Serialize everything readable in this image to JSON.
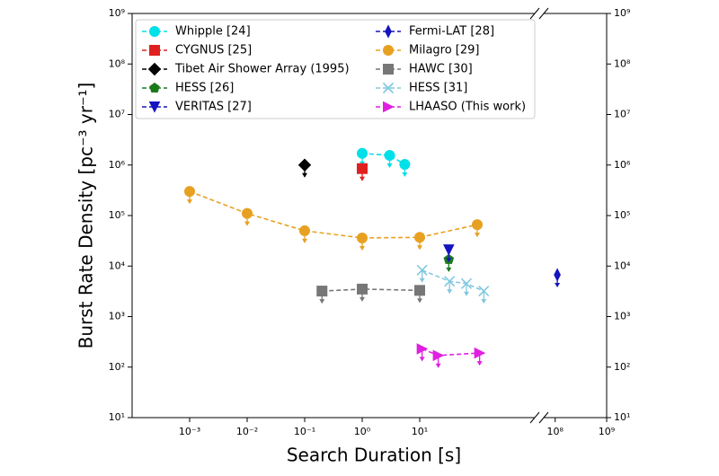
{
  "chart_data": {
    "type": "scatter",
    "xlog": true,
    "ylog": true,
    "upper_limits": true,
    "line_style": "dashed",
    "legend": "upper left",
    "xlabel": "Search Duration [s]",
    "ylabel": "Burst Rate Density [pc⁻³ yr⁻¹]",
    "xlim": [
      0.0001,
      1000
    ],
    "x2lim": [
      60000000,
      1000000000
    ],
    "ylim": [
      10,
      1000000000
    ],
    "xticks": [
      {
        "value": 0.001,
        "label": "10⁻³"
      },
      {
        "value": 0.01,
        "label": "10⁻²"
      },
      {
        "value": 0.1,
        "label": "10⁻¹"
      },
      {
        "value": 1,
        "label": "10⁰"
      },
      {
        "value": 10,
        "label": "10¹"
      }
    ],
    "x2ticks": [
      {
        "value": 100000000,
        "label": "10⁸"
      },
      {
        "value": 1000000000,
        "label": "10⁹"
      }
    ],
    "yticks": [
      {
        "value": 10,
        "label": "10¹"
      },
      {
        "value": 100,
        "label": "10²"
      },
      {
        "value": 1000,
        "label": "10³"
      },
      {
        "value": 10000,
        "label": "10⁴"
      },
      {
        "value": 100000,
        "label": "10⁵"
      },
      {
        "value": 1000000,
        "label": "10⁶"
      },
      {
        "value": 10000000,
        "label": "10⁷"
      },
      {
        "value": 100000000,
        "label": "10⁸"
      },
      {
        "value": 1000000000,
        "label": "10⁹"
      }
    ],
    "series": [
      {
        "name": "Whipple [24]",
        "color": "#00e0e8",
        "marker": "circle",
        "x": [
          1,
          3,
          5.5
        ],
        "values": [
          1700000,
          1550000,
          1030000
        ]
      },
      {
        "name": "CYGNUS [25]",
        "color": "#e02020",
        "marker": "square",
        "x": [
          1
        ],
        "values": [
          850000
        ]
      },
      {
        "name": "Tibet Air Shower Array (1995)",
        "color": "#000000",
        "marker": "diamond",
        "x": [
          0.1
        ],
        "values": [
          1000000
        ]
      },
      {
        "name": "HESS [26]",
        "color": "#1a7a1a",
        "marker": "pentagon",
        "x": [
          32
        ],
        "values": [
          13500
        ]
      },
      {
        "name": "VERITAS [27]",
        "color": "#1515c0",
        "marker": "triangle-down",
        "x": [
          32
        ],
        "values": [
          21000
        ]
      },
      {
        "name": "Fermi-LAT [28]",
        "color": "#1515c0",
        "marker": "thin-diamond",
        "x": [
          110000000
        ],
        "values": [
          6700
        ]
      },
      {
        "name": "Milagro [29]",
        "color": "#e8a020",
        "marker": "circle",
        "x": [
          0.001,
          0.01,
          0.1,
          1,
          10,
          100
        ],
        "values": [
          300000,
          110000,
          50000,
          36000,
          37000,
          66000
        ]
      },
      {
        "name": "HAWC [30]",
        "color": "#777777",
        "marker": "square",
        "x": [
          0.2,
          1,
          10
        ],
        "values": [
          3200,
          3500,
          3300
        ]
      },
      {
        "name": "HESS [31]",
        "color": "#80c8e0",
        "marker": "x",
        "x": [
          11,
          33,
          65,
          130
        ],
        "values": [
          8300,
          5000,
          4500,
          3200
        ]
      },
      {
        "name": "LHAASO (This work)",
        "color": "#e020e0",
        "marker": "triangle-right",
        "x": [
          11,
          21,
          110
        ],
        "values": [
          230,
          170,
          190
        ]
      }
    ]
  }
}
